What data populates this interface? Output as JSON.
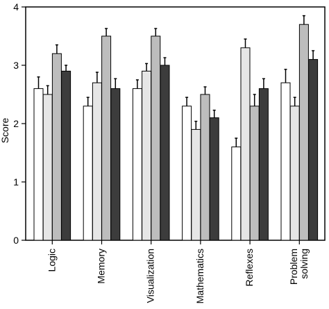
{
  "chart_data": {
    "type": "bar",
    "title": "",
    "xlabel": "",
    "ylabel": "Score",
    "ylim": [
      0,
      4
    ],
    "yticks": [
      "0",
      "1",
      "2",
      "3",
      "4"
    ],
    "categories": [
      [
        "Logic"
      ],
      [
        "Memory"
      ],
      [
        "Visualization"
      ],
      [
        "Mathematics"
      ],
      [
        "Reflexes"
      ],
      [
        "Problem",
        "solving"
      ]
    ],
    "series": [
      {
        "color": "#ffffff",
        "values": [
          2.6,
          2.3,
          2.6,
          2.3,
          1.6,
          2.7
        ],
        "errors": [
          0.2,
          0.15,
          0.15,
          0.15,
          0.15,
          0.23
        ]
      },
      {
        "color": "#e6e6e6",
        "values": [
          2.5,
          2.7,
          2.9,
          1.9,
          3.3,
          2.3
        ],
        "errors": [
          0.15,
          0.18,
          0.13,
          0.14,
          0.15,
          0.15
        ]
      },
      {
        "color": "#bdbdbd",
        "values": [
          3.2,
          3.5,
          3.5,
          2.5,
          2.3,
          3.7
        ],
        "errors": [
          0.15,
          0.13,
          0.13,
          0.13,
          0.2,
          0.15
        ]
      },
      {
        "color": "#3c3c3c",
        "values": [
          2.9,
          2.6,
          3.0,
          2.1,
          2.6,
          3.1
        ],
        "errors": [
          0.1,
          0.17,
          0.13,
          0.13,
          0.17,
          0.15
        ]
      }
    ],
    "grid": false,
    "legend": "none"
  }
}
